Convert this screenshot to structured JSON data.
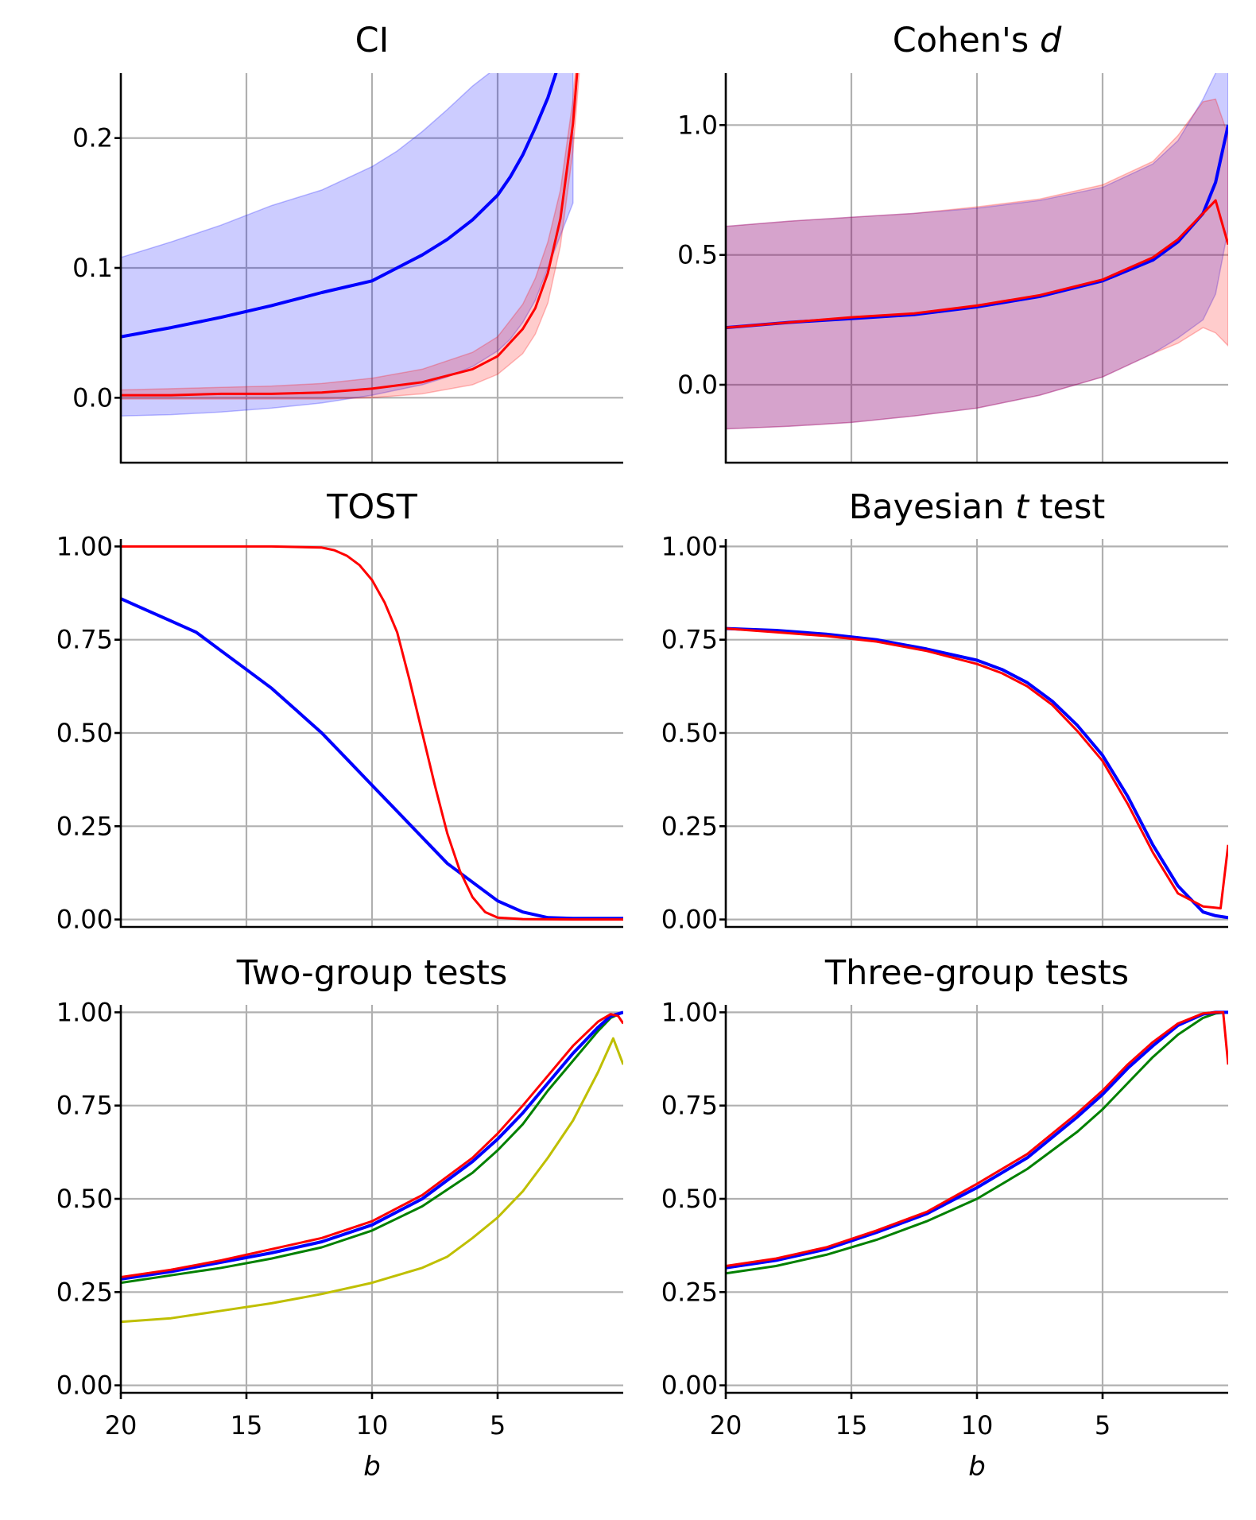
{
  "chart_data": [
    {
      "id": "ci",
      "type": "area",
      "title": "CI",
      "title_plain": "CI",
      "title_italic": "",
      "title_suffix": "",
      "xlim": [
        20,
        0
      ],
      "ylim": [
        -0.05,
        0.25
      ],
      "xticks": [
        20,
        15,
        10,
        5
      ],
      "yticks": [
        "0.0",
        "0.1",
        "0.2"
      ],
      "ytick_values": [
        0.0,
        0.1,
        0.2
      ],
      "xlabel": "",
      "series": [
        {
          "color": "#0000ff",
          "x": [
            20,
            18,
            16,
            14,
            12,
            10,
            9,
            8,
            7,
            6,
            5,
            4.5,
            4,
            3.5,
            3,
            2
          ],
          "mean": [
            0.047,
            0.054,
            0.062,
            0.071,
            0.081,
            0.09,
            0.1,
            0.11,
            0.122,
            0.137,
            0.156,
            0.17,
            0.187,
            0.208,
            0.231,
            0.29
          ],
          "upper": [
            0.108,
            0.12,
            0.133,
            0.148,
            0.16,
            0.178,
            0.19,
            0.205,
            0.222,
            0.24,
            0.255,
            0.27,
            0.29,
            0.31,
            0.33,
            0.38
          ],
          "lower": [
            -0.014,
            -0.013,
            -0.011,
            -0.008,
            -0.004,
            0.002,
            0.006,
            0.01,
            0.016,
            0.024,
            0.036,
            0.045,
            0.058,
            0.075,
            0.1,
            0.15
          ]
        },
        {
          "color": "#ff0000",
          "x": [
            20,
            18,
            16,
            14,
            12,
            10,
            8,
            6,
            5,
            4,
            3.5,
            3,
            2.5,
            2,
            1.5,
            1,
            0.8
          ],
          "mean": [
            0.002,
            0.002,
            0.003,
            0.003,
            0.004,
            0.007,
            0.012,
            0.022,
            0.032,
            0.053,
            0.069,
            0.096,
            0.138,
            0.211,
            0.33,
            0.55,
            0.65
          ],
          "upper": [
            0.006,
            0.007,
            0.008,
            0.009,
            0.011,
            0.015,
            0.022,
            0.035,
            0.047,
            0.072,
            0.092,
            0.12,
            0.16,
            0.23,
            0.35,
            0.55,
            0.65
          ],
          "lower": [
            -0.001,
            -0.001,
            -0.001,
            -0.001,
            -0.001,
            0.0,
            0.003,
            0.01,
            0.018,
            0.034,
            0.049,
            0.073,
            0.117,
            0.19,
            0.31,
            0.55,
            0.65
          ]
        }
      ]
    },
    {
      "id": "cohen",
      "type": "area",
      "title": "Cohen's d",
      "title_plain": "Cohen's ",
      "title_italic": "d",
      "title_suffix": "",
      "xlim": [
        20,
        0
      ],
      "ylim": [
        -0.3,
        1.2
      ],
      "xticks": [
        20,
        15,
        10,
        5
      ],
      "yticks": [
        "0.0",
        "0.5",
        "1.0"
      ],
      "ytick_values": [
        0.0,
        0.5,
        1.0
      ],
      "xlabel": "",
      "series": [
        {
          "color": "#0000ff",
          "x": [
            20,
            17.5,
            15,
            12.5,
            10,
            7.5,
            5,
            3,
            2,
            1,
            0.5,
            0
          ],
          "mean": [
            0.22,
            0.24,
            0.255,
            0.27,
            0.3,
            0.34,
            0.4,
            0.48,
            0.55,
            0.66,
            0.78,
            1.0
          ],
          "upper": [
            0.61,
            0.63,
            0.645,
            0.66,
            0.68,
            0.71,
            0.76,
            0.85,
            0.94,
            1.1,
            1.2,
            1.4
          ],
          "lower": [
            -0.17,
            -0.16,
            -0.145,
            -0.12,
            -0.09,
            -0.04,
            0.03,
            0.12,
            0.18,
            0.25,
            0.35,
            0.6
          ]
        },
        {
          "color": "#ff0000",
          "x": [
            20,
            17.5,
            15,
            12.5,
            10,
            7.5,
            5,
            3,
            2,
            1,
            0.5,
            0
          ],
          "mean": [
            0.22,
            0.24,
            0.26,
            0.275,
            0.305,
            0.345,
            0.405,
            0.49,
            0.56,
            0.66,
            0.71,
            0.54
          ],
          "upper": [
            0.61,
            0.63,
            0.645,
            0.66,
            0.685,
            0.715,
            0.77,
            0.86,
            0.96,
            1.09,
            1.1,
            0.96
          ],
          "lower": [
            -0.17,
            -0.16,
            -0.145,
            -0.12,
            -0.09,
            -0.04,
            0.03,
            0.12,
            0.16,
            0.22,
            0.2,
            0.15
          ]
        }
      ]
    },
    {
      "id": "tost",
      "type": "line",
      "title": "TOST",
      "title_plain": "TOST",
      "title_italic": "",
      "title_suffix": "",
      "xlim": [
        20,
        0
      ],
      "ylim": [
        -0.02,
        1.02
      ],
      "xticks": [
        20,
        15,
        10,
        5
      ],
      "yticks": [
        "0.00",
        "0.25",
        "0.50",
        "0.75",
        "1.00"
      ],
      "ytick_values": [
        0.0,
        0.25,
        0.5,
        0.75,
        1.0
      ],
      "xlabel": "",
      "series": [
        {
          "color": "#0000ff",
          "width": 4,
          "x": [
            20,
            19,
            18,
            17,
            16,
            15,
            14,
            13,
            12,
            11,
            10,
            9,
            8,
            7,
            6,
            5,
            4,
            3,
            2,
            1,
            0
          ],
          "y": [
            0.86,
            0.83,
            0.8,
            0.77,
            0.72,
            0.67,
            0.62,
            0.56,
            0.5,
            0.43,
            0.36,
            0.29,
            0.22,
            0.15,
            0.1,
            0.05,
            0.02,
            0.005,
            0.003,
            0.003,
            0.003
          ]
        },
        {
          "color": "#ff0000",
          "width": 3,
          "x": [
            20,
            18,
            16,
            14,
            12,
            11.5,
            11,
            10.5,
            10,
            9.5,
            9,
            8.5,
            8,
            7.5,
            7,
            6.5,
            6,
            5.5,
            5,
            4,
            2,
            0
          ],
          "y": [
            1.0,
            1.0,
            1.0,
            1.0,
            0.997,
            0.99,
            0.975,
            0.95,
            0.91,
            0.85,
            0.77,
            0.64,
            0.5,
            0.36,
            0.23,
            0.13,
            0.06,
            0.02,
            0.005,
            0.001,
            0.0,
            0.0
          ]
        }
      ]
    },
    {
      "id": "bayes",
      "type": "line",
      "title": "Bayesian t test",
      "title_plain": "Bayesian ",
      "title_italic": "t",
      "title_suffix": " test",
      "xlim": [
        20,
        0
      ],
      "ylim": [
        -0.02,
        1.02
      ],
      "xticks": [
        20,
        15,
        10,
        5
      ],
      "yticks": [
        "0.00",
        "0.25",
        "0.50",
        "0.75",
        "1.00"
      ],
      "ytick_values": [
        0.0,
        0.25,
        0.5,
        0.75,
        1.0
      ],
      "xlabel": "",
      "series": [
        {
          "color": "#0000ff",
          "width": 4,
          "x": [
            20,
            18,
            16,
            14,
            12,
            10,
            9,
            8,
            7,
            6,
            5,
            4,
            3,
            2,
            1,
            0.5,
            0
          ],
          "y": [
            0.78,
            0.775,
            0.765,
            0.75,
            0.725,
            0.695,
            0.67,
            0.635,
            0.585,
            0.52,
            0.44,
            0.33,
            0.2,
            0.09,
            0.02,
            0.01,
            0.005
          ]
        },
        {
          "color": "#ff0000",
          "width": 3,
          "x": [
            20,
            18,
            16,
            14,
            12,
            10,
            9,
            8,
            7,
            6,
            5,
            4,
            3,
            2,
            1,
            0.3,
            0
          ],
          "y": [
            0.78,
            0.77,
            0.76,
            0.745,
            0.72,
            0.685,
            0.66,
            0.625,
            0.575,
            0.505,
            0.425,
            0.31,
            0.18,
            0.07,
            0.035,
            0.03,
            0.2
          ]
        }
      ]
    },
    {
      "id": "twogroup",
      "type": "line",
      "title": "Two-group tests",
      "title_plain": "Two-group tests",
      "title_italic": "",
      "title_suffix": "",
      "xlim": [
        20,
        0
      ],
      "ylim": [
        -0.02,
        1.02
      ],
      "xticks": [
        20,
        15,
        10,
        5
      ],
      "yticks": [
        "0.00",
        "0.25",
        "0.50",
        "0.75",
        "1.00"
      ],
      "ytick_values": [
        0.0,
        0.25,
        0.5,
        0.75,
        1.0
      ],
      "xlabel": "b",
      "series": [
        {
          "color": "#bfbf00",
          "width": 3,
          "x": [
            20,
            18,
            17,
            16,
            14,
            12,
            10,
            9,
            8,
            7,
            6,
            5,
            4,
            3,
            2,
            1,
            0.4,
            0
          ],
          "y": [
            0.17,
            0.18,
            0.19,
            0.2,
            0.22,
            0.245,
            0.275,
            0.295,
            0.315,
            0.345,
            0.395,
            0.45,
            0.52,
            0.61,
            0.71,
            0.84,
            0.93,
            0.86
          ]
        },
        {
          "color": "#008000",
          "width": 3,
          "x": [
            20,
            18,
            16,
            14,
            12,
            10,
            8,
            6,
            5,
            4,
            3,
            2,
            1,
            0.5,
            0
          ],
          "y": [
            0.275,
            0.295,
            0.315,
            0.34,
            0.37,
            0.415,
            0.48,
            0.57,
            0.63,
            0.7,
            0.79,
            0.87,
            0.95,
            0.985,
            1.0
          ]
        },
        {
          "color": "#0000ff",
          "width": 4,
          "x": [
            20,
            18,
            16,
            14,
            12,
            10,
            8,
            6,
            5,
            4,
            3,
            2,
            1,
            0.5,
            0
          ],
          "y": [
            0.285,
            0.305,
            0.33,
            0.355,
            0.385,
            0.43,
            0.5,
            0.6,
            0.66,
            0.73,
            0.81,
            0.89,
            0.96,
            0.99,
            1.0
          ]
        },
        {
          "color": "#ff0000",
          "width": 3,
          "x": [
            20,
            18,
            16,
            14,
            12,
            10,
            8,
            6,
            5,
            4,
            3,
            2,
            1,
            0.5,
            0.2,
            0
          ],
          "y": [
            0.29,
            0.31,
            0.335,
            0.365,
            0.395,
            0.44,
            0.51,
            0.61,
            0.675,
            0.75,
            0.83,
            0.91,
            0.975,
            0.995,
            0.99,
            0.97
          ]
        }
      ]
    },
    {
      "id": "threegroup",
      "type": "line",
      "title": "Three-group tests",
      "title_plain": "Three-group tests",
      "title_italic": "",
      "title_suffix": "",
      "xlim": [
        20,
        0
      ],
      "ylim": [
        -0.02,
        1.02
      ],
      "xticks": [
        20,
        15,
        10,
        5
      ],
      "yticks": [
        "0.00",
        "0.25",
        "0.50",
        "0.75",
        "1.00"
      ],
      "ytick_values": [
        0.0,
        0.25,
        0.5,
        0.75,
        1.0
      ],
      "xlabel": "b",
      "series": [
        {
          "color": "#008000",
          "width": 3,
          "x": [
            20,
            18,
            16,
            14,
            12,
            10,
            8,
            6,
            5,
            4,
            3,
            2,
            1,
            0.5,
            0
          ],
          "y": [
            0.3,
            0.32,
            0.35,
            0.39,
            0.44,
            0.5,
            0.58,
            0.68,
            0.74,
            0.81,
            0.88,
            0.94,
            0.985,
            0.997,
            1.0
          ]
        },
        {
          "color": "#0000ff",
          "width": 4,
          "x": [
            20,
            18,
            16,
            14,
            12,
            10,
            8,
            6,
            5,
            4,
            3,
            2,
            1,
            0.5,
            0
          ],
          "y": [
            0.315,
            0.335,
            0.365,
            0.41,
            0.46,
            0.53,
            0.61,
            0.72,
            0.78,
            0.85,
            0.91,
            0.965,
            0.995,
            1.0,
            1.0
          ]
        },
        {
          "color": "#ff0000",
          "width": 3,
          "x": [
            20,
            18,
            16,
            14,
            12,
            10,
            8,
            6,
            5,
            4,
            3,
            2,
            1,
            0.5,
            0.2,
            0
          ],
          "y": [
            0.32,
            0.34,
            0.37,
            0.415,
            0.465,
            0.54,
            0.62,
            0.73,
            0.79,
            0.86,
            0.92,
            0.97,
            0.997,
            1.0,
            1.0,
            0.86
          ]
        }
      ]
    }
  ]
}
